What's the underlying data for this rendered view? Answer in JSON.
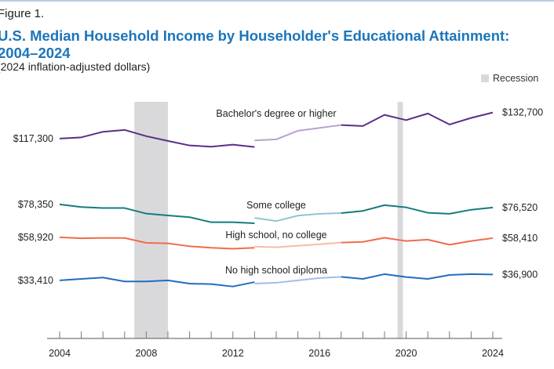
{
  "figure_label": "Figure 1.",
  "title": "U.S. Median Household Income by Householder's Educational Attainment: 2004–2024",
  "subtitle": "(2024 inflation-adjusted dollars)",
  "legend": {
    "recession_label": "Recession",
    "recession_color": "#d9d9dc"
  },
  "chart_data": {
    "type": "line",
    "title": "U.S. Median Household Income by Householder's Educational Attainment: 2004–2024",
    "ylabel": "",
    "xlabel": "",
    "xlim": [
      2004,
      2024
    ],
    "ylim": [
      0,
      139000
    ],
    "x_ticks": [
      2004,
      2008,
      2012,
      2016,
      2020,
      2024
    ],
    "grid": false,
    "recessions": [
      [
        2007.45,
        2009.0
      ],
      [
        2019.6,
        2019.85
      ]
    ],
    "series": [
      {
        "name": "Bachelor's degree or higher",
        "color": "#5c2d88",
        "light_color": "#b7a2d2",
        "start_label": "$117,300",
        "end_label": "$132,700",
        "segments": [
          {
            "shade": "dark",
            "x": [
              2004,
              2005,
              2006,
              2007,
              2008,
              2009,
              2010,
              2011,
              2012,
              2013
            ],
            "y": [
              117300,
              118000,
              121300,
              122400,
              118700,
              115900,
              113200,
              112500,
              113700,
              112300
            ]
          },
          {
            "shade": "light",
            "x": [
              2013,
              2014,
              2015,
              2016,
              2017
            ],
            "y": [
              116200,
              116800,
              121900,
              123600,
              125300
            ]
          },
          {
            "shade": "dark",
            "x": [
              2017,
              2018,
              2019,
              2020,
              2021,
              2022,
              2023,
              2024
            ],
            "y": [
              125300,
              124700,
              131300,
              128200,
              132100,
              125600,
              129500,
              132700
            ]
          }
        ]
      },
      {
        "name": "Some college",
        "color": "#177b7c",
        "light_color": "#8ec6d1",
        "start_label": "$78,350",
        "end_label": "$76,520",
        "segments": [
          {
            "shade": "dark",
            "x": [
              2004,
              2005,
              2006,
              2007,
              2008,
              2009,
              2010,
              2011,
              2012,
              2013
            ],
            "y": [
              78350,
              76800,
              76200,
              76200,
              72900,
              71800,
              70800,
              67800,
              67800,
              67200
            ]
          },
          {
            "shade": "light",
            "x": [
              2013,
              2014,
              2015,
              2016,
              2017
            ],
            "y": [
              70400,
              68500,
              71700,
              72800,
              73200
            ]
          },
          {
            "shade": "dark",
            "x": [
              2017,
              2018,
              2019,
              2020,
              2021,
              2022,
              2023,
              2024
            ],
            "y": [
              73200,
              74500,
              77900,
              76600,
              73400,
              72800,
              75200,
              76520
            ]
          }
        ]
      },
      {
        "name": "High school, no college",
        "color": "#f26b4c",
        "light_color": "#f9bba6",
        "start_label": "$58,920",
        "end_label": "$58,410",
        "segments": [
          {
            "shade": "dark",
            "x": [
              2004,
              2005,
              2006,
              2007,
              2008,
              2009,
              2010,
              2011,
              2012,
              2013
            ],
            "y": [
              58920,
              58300,
              58500,
              58500,
              55600,
              55300,
              53600,
              52700,
              52100,
              52700
            ]
          },
          {
            "shade": "light",
            "x": [
              2013,
              2014,
              2015,
              2016,
              2017
            ],
            "y": [
              53400,
              53000,
              53900,
              54800,
              55800
            ]
          },
          {
            "shade": "dark",
            "x": [
              2017,
              2018,
              2019,
              2020,
              2021,
              2022,
              2023,
              2024
            ],
            "y": [
              55800,
              56200,
              58600,
              56700,
              57500,
              54500,
              56700,
              58410
            ]
          }
        ]
      },
      {
        "name": "No high school diploma",
        "color": "#1f6ebf",
        "light_color": "#9fbfe6",
        "start_label": "$33,410",
        "end_label": "$36,900",
        "segments": [
          {
            "shade": "dark",
            "x": [
              2004,
              2005,
              2006,
              2007,
              2008,
              2009,
              2010,
              2011,
              2012,
              2013
            ],
            "y": [
              33410,
              34300,
              35100,
              32800,
              32800,
              33400,
              31500,
              31200,
              29800,
              32400
            ]
          },
          {
            "shade": "light",
            "x": [
              2013,
              2014,
              2015,
              2016,
              2017
            ],
            "y": [
              31500,
              32000,
              33400,
              34800,
              35500
            ]
          },
          {
            "shade": "dark",
            "x": [
              2017,
              2018,
              2019,
              2020,
              2021,
              2022,
              2023,
              2024
            ],
            "y": [
              35500,
              34300,
              37100,
              35400,
              34300,
              36600,
              37100,
              36900
            ]
          }
        ]
      }
    ]
  }
}
